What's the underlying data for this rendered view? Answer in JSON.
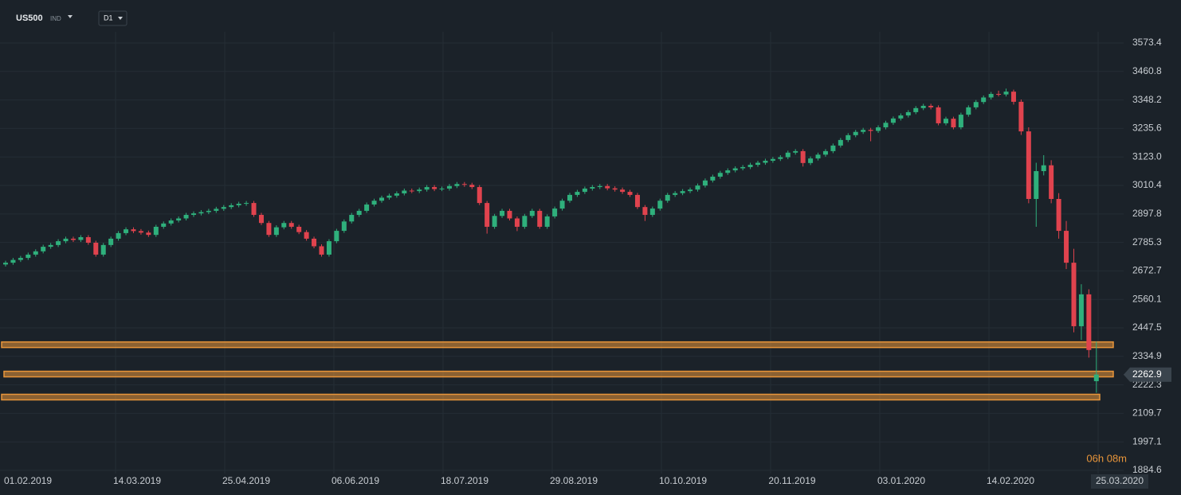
{
  "chart_data": {
    "type": "candlestick",
    "symbol": "US500",
    "symbol_type": "IND",
    "timeframe": "D1",
    "countdown": "06h 08m",
    "up_color": "#2fb07c",
    "down_color": "#e0434e",
    "level_color": "#e8953a",
    "grid": true,
    "ylim": [
      1872.0,
      3617.4
    ],
    "yticks": [
      3573.4,
      3460.8,
      3348.2,
      3235.6,
      {
        "value": 3123.0,
        "label": "3123.0"
      },
      3010.4,
      2897.8,
      2785.3,
      2672.7,
      2560.1,
      2447.5,
      2334.9,
      2222.3,
      2109.7,
      1997.1,
      1884.6
    ],
    "last_price": 2262.9,
    "levels": [
      2381,
      2265,
      2174
    ],
    "x_labels": [
      "01.02.2019",
      "14.03.2019",
      "25.04.2019",
      "06.06.2019",
      "18.07.2019",
      "29.08.2019",
      "10.10.2019",
      "20.11.2019",
      "03.01.2020",
      "14.02.2020",
      "25.03.2020"
    ],
    "candles": [
      [
        2698,
        2713,
        2690,
        2705
      ],
      [
        2705,
        2724,
        2697,
        2716
      ],
      [
        2716,
        2732,
        2708,
        2724
      ],
      [
        2724,
        2745,
        2716,
        2737
      ],
      [
        2737,
        2758,
        2729,
        2750
      ],
      [
        2750,
        2776,
        2742,
        2768
      ],
      [
        2768,
        2783,
        2760,
        2775
      ],
      [
        2775,
        2798,
        2767,
        2790
      ],
      [
        2790,
        2808,
        2782,
        2800
      ],
      [
        2800,
        2808,
        2787,
        2795
      ],
      [
        2795,
        2814,
        2787,
        2806
      ],
      [
        2806,
        2814,
        2776,
        2784
      ],
      [
        2784,
        2792,
        2729,
        2737
      ],
      [
        2737,
        2783,
        2729,
        2775
      ],
      [
        2775,
        2808,
        2767,
        2800
      ],
      [
        2800,
        2830,
        2792,
        2822
      ],
      [
        2822,
        2845,
        2814,
        2837
      ],
      [
        2837,
        2845,
        2822,
        2830
      ],
      [
        2830,
        2838,
        2816,
        2824
      ],
      [
        2824,
        2832,
        2807,
        2815
      ],
      [
        2815,
        2855,
        2807,
        2847
      ],
      [
        2847,
        2868,
        2839,
        2860
      ],
      [
        2860,
        2880,
        2852,
        2872
      ],
      [
        2872,
        2888,
        2864,
        2880
      ],
      [
        2880,
        2902,
        2872,
        2894
      ],
      [
        2894,
        2908,
        2886,
        2900
      ],
      [
        2900,
        2913,
        2892,
        2905
      ],
      [
        2905,
        2918,
        2897,
        2910
      ],
      [
        2910,
        2926,
        2902,
        2918
      ],
      [
        2918,
        2933,
        2910,
        2925
      ],
      [
        2925,
        2940,
        2917,
        2932
      ],
      [
        2932,
        2946,
        2924,
        2938
      ],
      [
        2938,
        2949,
        2930,
        2941
      ],
      [
        2941,
        2949,
        2886,
        2894
      ],
      [
        2894,
        2902,
        2854,
        2862
      ],
      [
        2862,
        2870,
        2807,
        2815
      ],
      [
        2815,
        2853,
        2807,
        2845
      ],
      [
        2845,
        2870,
        2837,
        2862
      ],
      [
        2862,
        2870,
        2839,
        2847
      ],
      [
        2847,
        2855,
        2818,
        2826
      ],
      [
        2826,
        2834,
        2792,
        2800
      ],
      [
        2800,
        2808,
        2762,
        2770
      ],
      [
        2770,
        2778,
        2729,
        2737
      ],
      [
        2737,
        2798,
        2729,
        2790
      ],
      [
        2790,
        2839,
        2782,
        2831
      ],
      [
        2831,
        2876,
        2823,
        2868
      ],
      [
        2868,
        2902,
        2860,
        2894
      ],
      [
        2894,
        2918,
        2886,
        2910
      ],
      [
        2910,
        2943,
        2902,
        2935
      ],
      [
        2935,
        2958,
        2927,
        2950
      ],
      [
        2950,
        2970,
        2942,
        2962
      ],
      [
        2962,
        2978,
        2954,
        2970
      ],
      [
        2970,
        2987,
        2962,
        2979
      ],
      [
        2979,
        2998,
        2971,
        2990
      ],
      [
        2990,
        2998,
        2980,
        2988
      ],
      [
        2988,
        3002,
        2980,
        2994
      ],
      [
        2994,
        3012,
        2986,
        3004
      ],
      [
        3004,
        3012,
        2988,
        2996
      ],
      [
        2996,
        3006,
        2988,
        2998
      ],
      [
        2998,
        3016,
        2990,
        3008
      ],
      [
        3008,
        3024,
        3000,
        3016
      ],
      [
        3016,
        3024,
        3005,
        3013
      ],
      [
        3013,
        3021,
        2996,
        3004
      ],
      [
        3004,
        3012,
        2933,
        2941
      ],
      [
        2941,
        2949,
        2820,
        2847
      ],
      [
        2847,
        2898,
        2839,
        2890
      ],
      [
        2890,
        2918,
        2882,
        2910
      ],
      [
        2910,
        2918,
        2872,
        2880
      ],
      [
        2880,
        2888,
        2830,
        2847
      ],
      [
        2847,
        2898,
        2839,
        2890
      ],
      [
        2890,
        2918,
        2882,
        2910
      ],
      [
        2910,
        2918,
        2839,
        2847
      ],
      [
        2847,
        2896,
        2839,
        2888
      ],
      [
        2888,
        2927,
        2880,
        2919
      ],
      [
        2919,
        2958,
        2911,
        2950
      ],
      [
        2950,
        2981,
        2942,
        2973
      ],
      [
        2973,
        2993,
        2965,
        2985
      ],
      [
        2985,
        3006,
        2977,
        2998
      ],
      [
        2998,
        3012,
        2990,
        3004
      ],
      [
        3004,
        3016,
        2996,
        3008
      ],
      [
        3008,
        3016,
        2991,
        2999
      ],
      [
        2999,
        3007,
        2986,
        2994
      ],
      [
        2994,
        3002,
        2977,
        2985
      ],
      [
        2985,
        2993,
        2965,
        2973
      ],
      [
        2973,
        2981,
        2917,
        2925
      ],
      [
        2925,
        2933,
        2870,
        2894
      ],
      [
        2894,
        2927,
        2886,
        2919
      ],
      [
        2919,
        2958,
        2911,
        2950
      ],
      [
        2950,
        2981,
        2942,
        2973
      ],
      [
        2973,
        2988,
        2965,
        2980
      ],
      [
        2980,
        2996,
        2972,
        2988
      ],
      [
        2988,
        3002,
        2980,
        2994
      ],
      [
        2994,
        3018,
        2986,
        3010
      ],
      [
        3010,
        3038,
        3002,
        3030
      ],
      [
        3030,
        3053,
        3022,
        3045
      ],
      [
        3045,
        3068,
        3037,
        3060
      ],
      [
        3060,
        3078,
        3052,
        3070
      ],
      [
        3070,
        3086,
        3062,
        3078
      ],
      [
        3078,
        3091,
        3070,
        3083
      ],
      [
        3083,
        3100,
        3075,
        3092
      ],
      [
        3092,
        3108,
        3084,
        3100
      ],
      [
        3100,
        3116,
        3092,
        3108
      ],
      [
        3108,
        3123,
        3100,
        3115
      ],
      [
        3115,
        3130,
        3107,
        3122
      ],
      [
        3122,
        3148,
        3114,
        3140
      ],
      [
        3140,
        3154,
        3132,
        3146
      ],
      [
        3146,
        3154,
        3085,
        3099
      ],
      [
        3099,
        3125,
        3091,
        3117
      ],
      [
        3117,
        3140,
        3109,
        3132
      ],
      [
        3132,
        3154,
        3124,
        3146
      ],
      [
        3146,
        3176,
        3138,
        3168
      ],
      [
        3168,
        3198,
        3160,
        3190
      ],
      [
        3190,
        3217,
        3182,
        3209
      ],
      [
        3209,
        3230,
        3201,
        3222
      ],
      [
        3222,
        3238,
        3214,
        3230
      ],
      [
        3230,
        3238,
        3185,
        3226
      ],
      [
        3226,
        3248,
        3218,
        3240
      ],
      [
        3240,
        3266,
        3232,
        3258
      ],
      [
        3258,
        3283,
        3250,
        3275
      ],
      [
        3275,
        3295,
        3267,
        3287
      ],
      [
        3287,
        3308,
        3279,
        3300
      ],
      [
        3300,
        3324,
        3292,
        3316
      ],
      [
        3316,
        3333,
        3308,
        3325
      ],
      [
        3325,
        3333,
        3311,
        3319
      ],
      [
        3319,
        3327,
        3248,
        3256
      ],
      [
        3256,
        3282,
        3248,
        3274
      ],
      [
        3274,
        3282,
        3232,
        3240
      ],
      [
        3240,
        3298,
        3232,
        3290
      ],
      [
        3290,
        3327,
        3282,
        3319
      ],
      [
        3319,
        3348,
        3311,
        3340
      ],
      [
        3340,
        3366,
        3332,
        3358
      ],
      [
        3358,
        3380,
        3350,
        3372
      ],
      [
        3372,
        3385,
        3362,
        3370
      ],
      [
        3370,
        3393,
        3362,
        3381
      ],
      [
        3381,
        3389,
        3330,
        3341
      ],
      [
        3341,
        3350,
        3210,
        3224
      ],
      [
        3224,
        3240,
        2940,
        2957
      ],
      [
        2957,
        3100,
        2847,
        3067
      ],
      [
        3067,
        3130,
        3050,
        3090
      ],
      [
        3090,
        3110,
        2940,
        2957
      ],
      [
        2957,
        2980,
        2800,
        2831
      ],
      [
        2831,
        2870,
        2680,
        2705
      ],
      [
        2705,
        2760,
        2430,
        2454
      ],
      [
        2454,
        2620,
        2400,
        2580
      ],
      [
        2580,
        2600,
        2330,
        2360
      ],
      [
        2237,
        2393,
        2191,
        2263
      ]
    ]
  }
}
